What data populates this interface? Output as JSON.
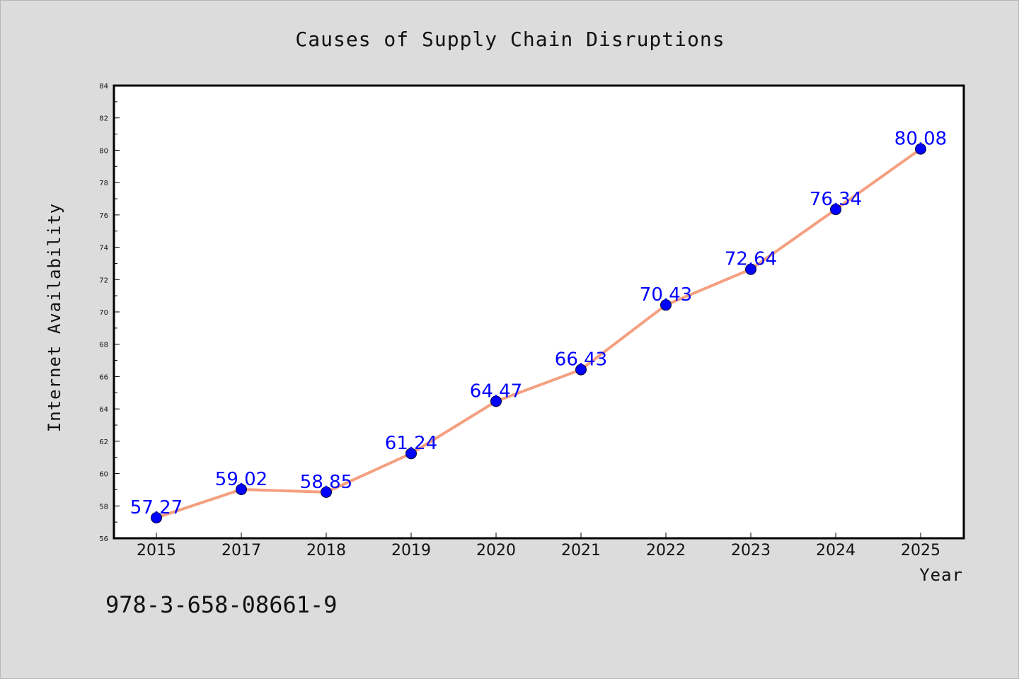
{
  "colors": {
    "background": "#dcdcdc",
    "plot_background": "#ffffff",
    "line": "#f4a080",
    "marker": "#0000ff",
    "data_label": "#0000ff",
    "axis": "#000000"
  },
  "footer": {
    "code": "978-3-658-08661-9"
  },
  "chart_data": {
    "type": "line",
    "title": "Causes of Supply Chain Disruptions",
    "xlabel": "Year",
    "ylabel": "Internet Availability",
    "categories": [
      "2015",
      "2017",
      "2018",
      "2019",
      "2020",
      "2021",
      "2022",
      "2023",
      "2024",
      "2025"
    ],
    "series": [
      {
        "values": [
          57.27,
          59.02,
          58.85,
          61.24,
          64.47,
          66.43,
          70.43,
          72.64,
          76.34,
          80.08
        ],
        "labels": [
          "57.27",
          "59.02",
          "58.85",
          "61.24",
          "64.47",
          "66.43",
          "70.43",
          "72.64",
          "76.34",
          "80.08"
        ]
      }
    ],
    "ylim": [
      56,
      84
    ],
    "yticks": [
      56,
      58,
      60,
      62,
      64,
      66,
      68,
      70,
      72,
      74,
      76,
      78,
      80,
      82,
      84
    ],
    "grid": false,
    "legend": "none",
    "marker": "circle"
  }
}
